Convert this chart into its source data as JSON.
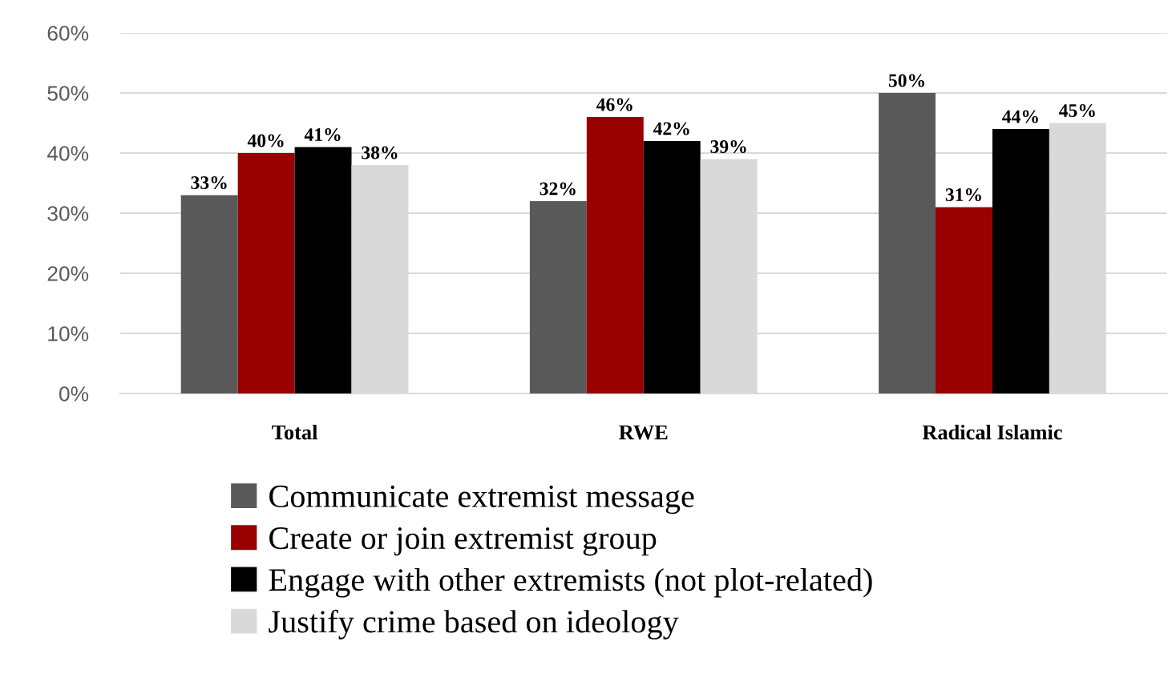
{
  "chart_data": {
    "type": "bar",
    "categories": [
      "Total",
      "RWE",
      "Radical Islamic"
    ],
    "series": [
      {
        "name": "Communicate extremist message",
        "color": "#595959",
        "values": [
          33,
          32,
          50
        ],
        "value_labels": [
          "33%",
          "32%",
          "50%"
        ]
      },
      {
        "name": "Create or join extremist group",
        "color": "#990000",
        "values": [
          40,
          46,
          31
        ],
        "value_labels": [
          "40%",
          "46%",
          "31%"
        ]
      },
      {
        "name": "Engage with other extremists (not plot-related)",
        "color": "#000000",
        "values": [
          41,
          42,
          44
        ],
        "value_labels": [
          "41%",
          "42%",
          "44%"
        ]
      },
      {
        "name": "Justify crime based on ideology",
        "color": "#d9d9d9",
        "values": [
          38,
          39,
          45
        ],
        "value_labels": [
          "38%",
          "39%",
          "45%"
        ]
      }
    ],
    "ylim": [
      0,
      60
    ],
    "yticks": [
      {
        "value": 0,
        "label": "0%"
      },
      {
        "value": 10,
        "label": "10%"
      },
      {
        "value": 20,
        "label": "20%"
      },
      {
        "value": 30,
        "label": "30%"
      },
      {
        "value": 40,
        "label": "40%"
      },
      {
        "value": 50,
        "label": "50%"
      },
      {
        "value": 60,
        "label": "60%"
      }
    ],
    "grid": "y",
    "legend": "bottom"
  }
}
